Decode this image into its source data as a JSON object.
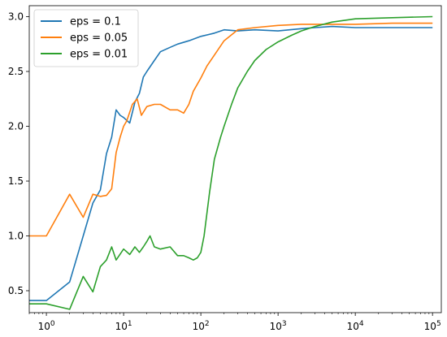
{
  "chart_data": {
    "type": "line",
    "x_scale": "log",
    "xlim": [
      0.6,
      130000
    ],
    "ylim": [
      0.3,
      3.1
    ],
    "x_ticks": [
      {
        "value": 1,
        "base": "10",
        "exp": "0"
      },
      {
        "value": 10,
        "base": "10",
        "exp": "1"
      },
      {
        "value": 100,
        "base": "10",
        "exp": "2"
      },
      {
        "value": 1000,
        "base": "10",
        "exp": "3"
      },
      {
        "value": 10000,
        "base": "10",
        "exp": "4"
      },
      {
        "value": 100000,
        "base": "10",
        "exp": "5"
      }
    ],
    "y_ticks": [
      {
        "value": 0.5,
        "label": "0.5"
      },
      {
        "value": 1.0,
        "label": "1.0"
      },
      {
        "value": 1.5,
        "label": "1.5"
      },
      {
        "value": 2.0,
        "label": "2.0"
      },
      {
        "value": 2.5,
        "label": "2.5"
      },
      {
        "value": 3.0,
        "label": "3.0"
      }
    ],
    "grid": false,
    "legend": "top-left",
    "series": [
      {
        "name": "eps = 0.1",
        "color": "#1f77b4",
        "points": [
          [
            0.6,
            0.41
          ],
          [
            1,
            0.41
          ],
          [
            2,
            0.58
          ],
          [
            3,
            1.0
          ],
          [
            4,
            1.3
          ],
          [
            5,
            1.42
          ],
          [
            6,
            1.75
          ],
          [
            7,
            1.9
          ],
          [
            8,
            2.15
          ],
          [
            9,
            2.1
          ],
          [
            10,
            2.08
          ],
          [
            12,
            2.03
          ],
          [
            14,
            2.22
          ],
          [
            16,
            2.3
          ],
          [
            18,
            2.45
          ],
          [
            20,
            2.5
          ],
          [
            25,
            2.6
          ],
          [
            30,
            2.68
          ],
          [
            40,
            2.72
          ],
          [
            50,
            2.75
          ],
          [
            70,
            2.78
          ],
          [
            100,
            2.82
          ],
          [
            150,
            2.85
          ],
          [
            200,
            2.88
          ],
          [
            300,
            2.87
          ],
          [
            500,
            2.88
          ],
          [
            1000,
            2.87
          ],
          [
            2000,
            2.89
          ],
          [
            3000,
            2.9
          ],
          [
            5000,
            2.91
          ],
          [
            10000,
            2.9
          ],
          [
            30000,
            2.9
          ],
          [
            100000,
            2.9
          ]
        ]
      },
      {
        "name": "eps = 0.05",
        "color": "#ff7f0e",
        "points": [
          [
            0.6,
            1.0
          ],
          [
            1,
            1.0
          ],
          [
            2,
            1.38
          ],
          [
            3,
            1.17
          ],
          [
            4,
            1.38
          ],
          [
            5,
            1.36
          ],
          [
            6,
            1.37
          ],
          [
            7,
            1.43
          ],
          [
            8,
            1.76
          ],
          [
            9,
            1.9
          ],
          [
            10,
            2.0
          ],
          [
            11,
            2.05
          ],
          [
            13,
            2.2
          ],
          [
            15,
            2.25
          ],
          [
            17,
            2.1
          ],
          [
            20,
            2.18
          ],
          [
            25,
            2.2
          ],
          [
            30,
            2.2
          ],
          [
            40,
            2.15
          ],
          [
            50,
            2.15
          ],
          [
            60,
            2.12
          ],
          [
            70,
            2.2
          ],
          [
            80,
            2.32
          ],
          [
            100,
            2.44
          ],
          [
            120,
            2.55
          ],
          [
            150,
            2.65
          ],
          [
            200,
            2.78
          ],
          [
            300,
            2.88
          ],
          [
            500,
            2.9
          ],
          [
            1000,
            2.92
          ],
          [
            2000,
            2.93
          ],
          [
            3000,
            2.93
          ],
          [
            5000,
            2.93
          ],
          [
            10000,
            2.93
          ],
          [
            30000,
            2.94
          ],
          [
            100000,
            2.94
          ]
        ]
      },
      {
        "name": "eps = 0.01",
        "color": "#2ca02c",
        "points": [
          [
            0.6,
            0.38
          ],
          [
            1,
            0.38
          ],
          [
            2,
            0.33
          ],
          [
            3,
            0.63
          ],
          [
            4,
            0.49
          ],
          [
            5,
            0.72
          ],
          [
            6,
            0.78
          ],
          [
            7,
            0.9
          ],
          [
            8,
            0.78
          ],
          [
            10,
            0.88
          ],
          [
            12,
            0.83
          ],
          [
            14,
            0.9
          ],
          [
            16,
            0.85
          ],
          [
            18,
            0.9
          ],
          [
            20,
            0.95
          ],
          [
            22,
            1.0
          ],
          [
            25,
            0.9
          ],
          [
            30,
            0.88
          ],
          [
            40,
            0.9
          ],
          [
            50,
            0.82
          ],
          [
            60,
            0.82
          ],
          [
            70,
            0.8
          ],
          [
            80,
            0.78
          ],
          [
            90,
            0.8
          ],
          [
            100,
            0.85
          ],
          [
            110,
            1.0
          ],
          [
            130,
            1.4
          ],
          [
            150,
            1.7
          ],
          [
            180,
            1.9
          ],
          [
            200,
            2.0
          ],
          [
            250,
            2.2
          ],
          [
            300,
            2.35
          ],
          [
            400,
            2.5
          ],
          [
            500,
            2.6
          ],
          [
            700,
            2.7
          ],
          [
            1000,
            2.77
          ],
          [
            1500,
            2.83
          ],
          [
            2000,
            2.87
          ],
          [
            3000,
            2.91
          ],
          [
            5000,
            2.95
          ],
          [
            10000,
            2.98
          ],
          [
            30000,
            2.99
          ],
          [
            100000,
            3.0
          ]
        ]
      }
    ]
  }
}
